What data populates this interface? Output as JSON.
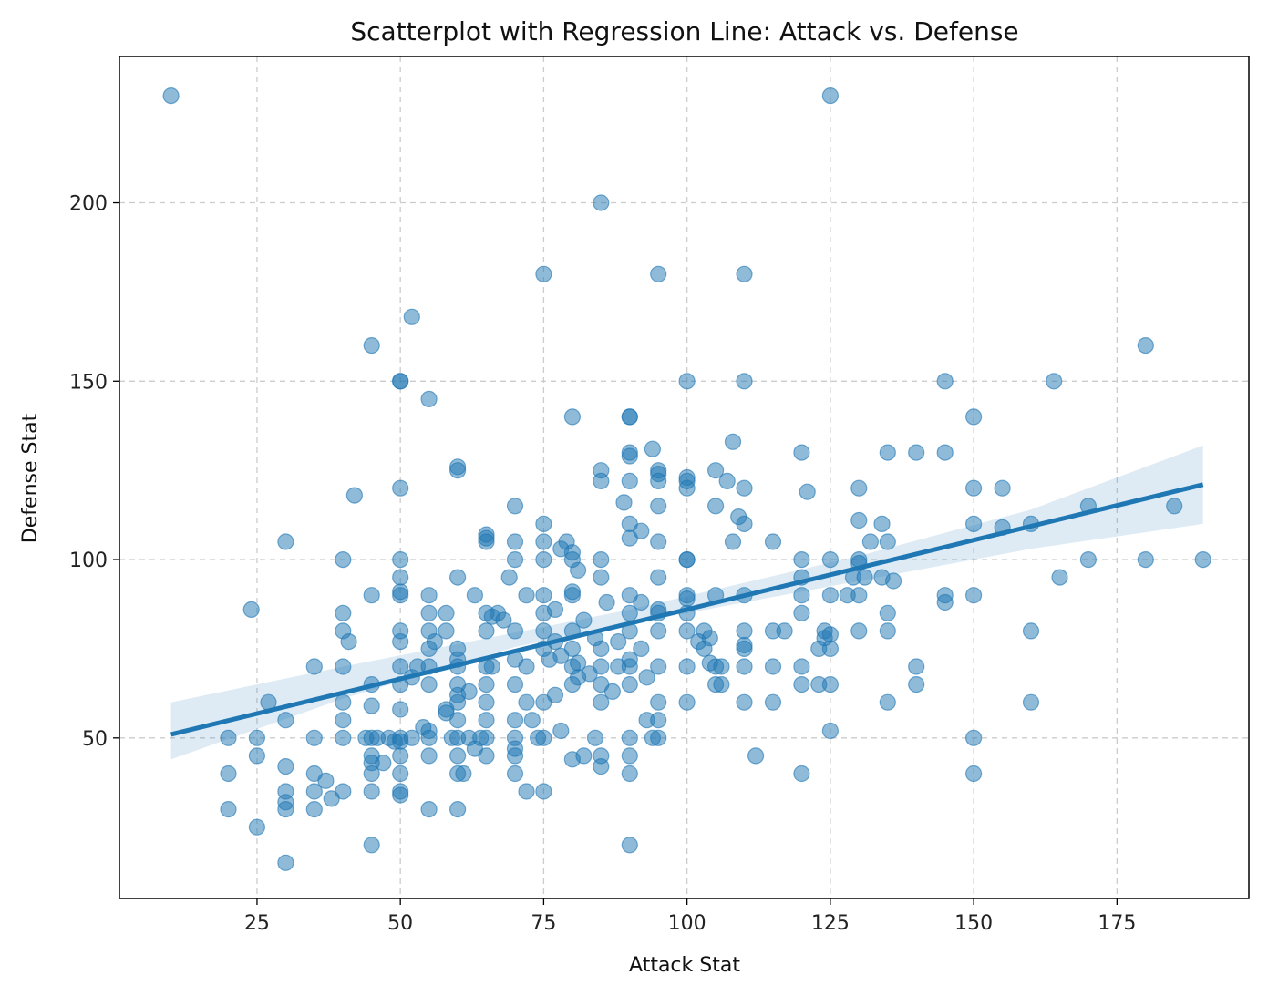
{
  "chart_data": {
    "type": "scatter",
    "title": "Scatterplot with Regression Line: Attack vs. Defense",
    "xlabel": "Attack Stat",
    "ylabel": "Defense Stat",
    "xlim": [
      1,
      198
    ],
    "ylim": [
      5,
      241
    ],
    "xticks": [
      25,
      50,
      75,
      100,
      125,
      150,
      175
    ],
    "xtick_labels": [
      "25",
      "50",
      "75",
      "100",
      "125",
      "150",
      "175"
    ],
    "yticks": [
      50,
      100,
      150,
      200
    ],
    "ytick_labels": [
      "50",
      "100",
      "150",
      "200"
    ],
    "grid": true,
    "colors": {
      "points": "#1f77b4",
      "line": "#1f77b4",
      "band": "#1f77b4"
    },
    "regression": {
      "x_start": 10,
      "y_start": 51,
      "x_end": 190,
      "y_end": 121
    },
    "confidence_band": [
      [
        10,
        60,
        44
      ],
      [
        40,
        70,
        61
      ],
      [
        70,
        79.5,
        75.5
      ],
      [
        90,
        86,
        82
      ],
      [
        130,
        101,
        94
      ],
      [
        160,
        114,
        103
      ],
      [
        190,
        132,
        110
      ]
    ],
    "points": [
      [
        10,
        230
      ],
      [
        125,
        230
      ],
      [
        85,
        200
      ],
      [
        75,
        180
      ],
      [
        95,
        180
      ],
      [
        110,
        180
      ],
      [
        52,
        168
      ],
      [
        45,
        160
      ],
      [
        180,
        160
      ],
      [
        50,
        150
      ],
      [
        50,
        150
      ],
      [
        100,
        150
      ],
      [
        110,
        150
      ],
      [
        145,
        150
      ],
      [
        164,
        150
      ],
      [
        55,
        145
      ],
      [
        80,
        140
      ],
      [
        90,
        140
      ],
      [
        90,
        140
      ],
      [
        150,
        140
      ],
      [
        90,
        130
      ],
      [
        90,
        129
      ],
      [
        120,
        130
      ],
      [
        135,
        130
      ],
      [
        140,
        130
      ],
      [
        145,
        130
      ],
      [
        94,
        131
      ],
      [
        108,
        133
      ],
      [
        60,
        126
      ],
      [
        60,
        125
      ],
      [
        85,
        125
      ],
      [
        95,
        125
      ],
      [
        95,
        124
      ],
      [
        105,
        125
      ],
      [
        85,
        122
      ],
      [
        90,
        122
      ],
      [
        95,
        122
      ],
      [
        100,
        123
      ],
      [
        100,
        122
      ],
      [
        100,
        120
      ],
      [
        107,
        122
      ],
      [
        42,
        118
      ],
      [
        50,
        120
      ],
      [
        110,
        120
      ],
      [
        121,
        119
      ],
      [
        130,
        120
      ],
      [
        150,
        120
      ],
      [
        155,
        120
      ],
      [
        70,
        115
      ],
      [
        89,
        116
      ],
      [
        95,
        115
      ],
      [
        105,
        115
      ],
      [
        109,
        112
      ],
      [
        110,
        110
      ],
      [
        130,
        111
      ],
      [
        134,
        110
      ],
      [
        150,
        110
      ],
      [
        155,
        109
      ],
      [
        160,
        110
      ],
      [
        170,
        115
      ],
      [
        185,
        115
      ],
      [
        30,
        105
      ],
      [
        65,
        107
      ],
      [
        65,
        106
      ],
      [
        65,
        105
      ],
      [
        70,
        105
      ],
      [
        75,
        105
      ],
      [
        75,
        110
      ],
      [
        79,
        105
      ],
      [
        78,
        103
      ],
      [
        80,
        102
      ],
      [
        80,
        100
      ],
      [
        90,
        110
      ],
      [
        90,
        106
      ],
      [
        92,
        108
      ],
      [
        95,
        105
      ],
      [
        108,
        105
      ],
      [
        115,
        105
      ],
      [
        132,
        105
      ],
      [
        135,
        105
      ],
      [
        40,
        100
      ],
      [
        50,
        100
      ],
      [
        70,
        100
      ],
      [
        75,
        100
      ],
      [
        85,
        100
      ],
      [
        100,
        100
      ],
      [
        100,
        100
      ],
      [
        120,
        100
      ],
      [
        125,
        100
      ],
      [
        130,
        100
      ],
      [
        130,
        99
      ],
      [
        170,
        100
      ],
      [
        180,
        100
      ],
      [
        190,
        100
      ],
      [
        50,
        95
      ],
      [
        60,
        95
      ],
      [
        69,
        95
      ],
      [
        81,
        97
      ],
      [
        85,
        95
      ],
      [
        95,
        95
      ],
      [
        120,
        95
      ],
      [
        129,
        95
      ],
      [
        131,
        95
      ],
      [
        134,
        95
      ],
      [
        136,
        94
      ],
      [
        165,
        95
      ],
      [
        40,
        85
      ],
      [
        45,
        90
      ],
      [
        50,
        91
      ],
      [
        50,
        90
      ],
      [
        55,
        90
      ],
      [
        55,
        85
      ],
      [
        58,
        85
      ],
      [
        63,
        90
      ],
      [
        65,
        85
      ],
      [
        66,
        84
      ],
      [
        67,
        85
      ],
      [
        72,
        90
      ],
      [
        75,
        90
      ],
      [
        75,
        85
      ],
      [
        77,
        86
      ],
      [
        80,
        90
      ],
      [
        80,
        91
      ],
      [
        86,
        88
      ],
      [
        90,
        90
      ],
      [
        90,
        85
      ],
      [
        92,
        88
      ],
      [
        95,
        85
      ],
      [
        95,
        86
      ],
      [
        100,
        90
      ],
      [
        100,
        89
      ],
      [
        100,
        85
      ],
      [
        105,
        90
      ],
      [
        110,
        90
      ],
      [
        120,
        85
      ],
      [
        120,
        90
      ],
      [
        125,
        90
      ],
      [
        128,
        90
      ],
      [
        130,
        90
      ],
      [
        135,
        85
      ],
      [
        145,
        90
      ],
      [
        145,
        88
      ],
      [
        150,
        90
      ],
      [
        24,
        86
      ],
      [
        40,
        80
      ],
      [
        41,
        77
      ],
      [
        50,
        80
      ],
      [
        50,
        77
      ],
      [
        55,
        80
      ],
      [
        58,
        80
      ],
      [
        65,
        80
      ],
      [
        68,
        83
      ],
      [
        70,
        80
      ],
      [
        75,
        80
      ],
      [
        77,
        77
      ],
      [
        80,
        80
      ],
      [
        80,
        75
      ],
      [
        82,
        83
      ],
      [
        84,
        78
      ],
      [
        88,
        77
      ],
      [
        90,
        80
      ],
      [
        95,
        80
      ],
      [
        100,
        80
      ],
      [
        103,
        80
      ],
      [
        104,
        78
      ],
      [
        110,
        80
      ],
      [
        110,
        76
      ],
      [
        115,
        80
      ],
      [
        117,
        80
      ],
      [
        124,
        80
      ],
      [
        124,
        78
      ],
      [
        125,
        79
      ],
      [
        130,
        80
      ],
      [
        135,
        80
      ],
      [
        160,
        80
      ],
      [
        35,
        70
      ],
      [
        40,
        70
      ],
      [
        50,
        70
      ],
      [
        53,
        70
      ],
      [
        55,
        75
      ],
      [
        55,
        70
      ],
      [
        56,
        77
      ],
      [
        60,
        75
      ],
      [
        60,
        72
      ],
      [
        60,
        70
      ],
      [
        65,
        70
      ],
      [
        66,
        70
      ],
      [
        70,
        72
      ],
      [
        72,
        70
      ],
      [
        75,
        75
      ],
      [
        76,
        72
      ],
      [
        78,
        73
      ],
      [
        80,
        70
      ],
      [
        81,
        71
      ],
      [
        83,
        68
      ],
      [
        85,
        70
      ],
      [
        85,
        75
      ],
      [
        88,
        70
      ],
      [
        90,
        72
      ],
      [
        90,
        70
      ],
      [
        92,
        75
      ],
      [
        95,
        70
      ],
      [
        100,
        70
      ],
      [
        102,
        77
      ],
      [
        103,
        75
      ],
      [
        104,
        71
      ],
      [
        105,
        70
      ],
      [
        106,
        70
      ],
      [
        110,
        75
      ],
      [
        110,
        70
      ],
      [
        115,
        70
      ],
      [
        120,
        70
      ],
      [
        123,
        75
      ],
      [
        125,
        75
      ],
      [
        140,
        70
      ],
      [
        27,
        60
      ],
      [
        40,
        60
      ],
      [
        40,
        55
      ],
      [
        45,
        65
      ],
      [
        45,
        59
      ],
      [
        50,
        65
      ],
      [
        50,
        58
      ],
      [
        52,
        67
      ],
      [
        55,
        65
      ],
      [
        58,
        58
      ],
      [
        60,
        65
      ],
      [
        60,
        62
      ],
      [
        60,
        60
      ],
      [
        62,
        63
      ],
      [
        65,
        65
      ],
      [
        65,
        60
      ],
      [
        70,
        65
      ],
      [
        72,
        60
      ],
      [
        75,
        60
      ],
      [
        77,
        62
      ],
      [
        80,
        65
      ],
      [
        81,
        67
      ],
      [
        85,
        65
      ],
      [
        85,
        60
      ],
      [
        87,
        63
      ],
      [
        90,
        65
      ],
      [
        93,
        67
      ],
      [
        95,
        60
      ],
      [
        100,
        60
      ],
      [
        105,
        65
      ],
      [
        106,
        65
      ],
      [
        110,
        60
      ],
      [
        115,
        60
      ],
      [
        120,
        65
      ],
      [
        123,
        65
      ],
      [
        125,
        65
      ],
      [
        135,
        60
      ],
      [
        140,
        65
      ],
      [
        160,
        60
      ],
      [
        20,
        50
      ],
      [
        25,
        50
      ],
      [
        30,
        55
      ],
      [
        35,
        50
      ],
      [
        40,
        50
      ],
      [
        44,
        50
      ],
      [
        45,
        50
      ],
      [
        46,
        50
      ],
      [
        48,
        50
      ],
      [
        49,
        49
      ],
      [
        50,
        50
      ],
      [
        50,
        49
      ],
      [
        52,
        50
      ],
      [
        54,
        53
      ],
      [
        55,
        52
      ],
      [
        55,
        50
      ],
      [
        58,
        57
      ],
      [
        59,
        50
      ],
      [
        60,
        55
      ],
      [
        60,
        50
      ],
      [
        62,
        50
      ],
      [
        63,
        47
      ],
      [
        64,
        50
      ],
      [
        65,
        55
      ],
      [
        65,
        50
      ],
      [
        70,
        55
      ],
      [
        70,
        50
      ],
      [
        70,
        47
      ],
      [
        73,
        55
      ],
      [
        74,
        50
      ],
      [
        75,
        50
      ],
      [
        78,
        52
      ],
      [
        84,
        50
      ],
      [
        90,
        50
      ],
      [
        93,
        55
      ],
      [
        94,
        50
      ],
      [
        95,
        55
      ],
      [
        95,
        50
      ],
      [
        125,
        52
      ],
      [
        150,
        50
      ],
      [
        20,
        40
      ],
      [
        25,
        45
      ],
      [
        30,
        42
      ],
      [
        35,
        40
      ],
      [
        37,
        38
      ],
      [
        38,
        33
      ],
      [
        40,
        35
      ],
      [
        45,
        45
      ],
      [
        45,
        43
      ],
      [
        45,
        40
      ],
      [
        47,
        43
      ],
      [
        50,
        45
      ],
      [
        50,
        40
      ],
      [
        50,
        35
      ],
      [
        55,
        45
      ],
      [
        60,
        45
      ],
      [
        60,
        40
      ],
      [
        61,
        40
      ],
      [
        65,
        45
      ],
      [
        70,
        45
      ],
      [
        70,
        40
      ],
      [
        72,
        35
      ],
      [
        75,
        35
      ],
      [
        80,
        44
      ],
      [
        82,
        45
      ],
      [
        85,
        45
      ],
      [
        85,
        42
      ],
      [
        90,
        45
      ],
      [
        90,
        40
      ],
      [
        112,
        45
      ],
      [
        120,
        40
      ],
      [
        150,
        40
      ],
      [
        20,
        30
      ],
      [
        25,
        25
      ],
      [
        30,
        35
      ],
      [
        30,
        32
      ],
      [
        30,
        30
      ],
      [
        35,
        35
      ],
      [
        35,
        30
      ],
      [
        45,
        35
      ],
      [
        50,
        34
      ],
      [
        55,
        30
      ],
      [
        60,
        30
      ],
      [
        45,
        20
      ],
      [
        30,
        15
      ],
      [
        90,
        20
      ]
    ]
  }
}
